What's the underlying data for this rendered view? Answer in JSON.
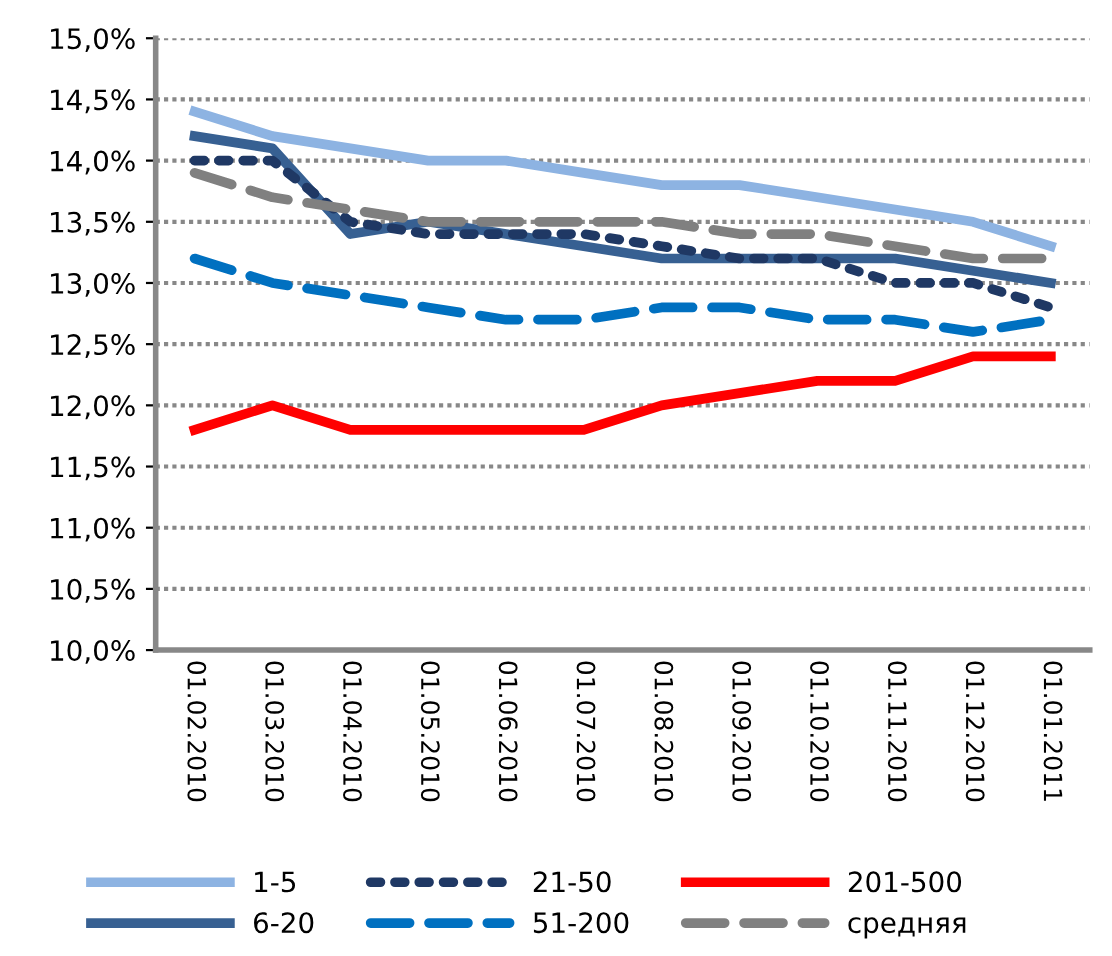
{
  "chart_data": {
    "type": "line",
    "categories": [
      "01.02.2010",
      "01.03.2010",
      "01.04.2010",
      "01.05.2010",
      "01.06.2010",
      "01.07.2010",
      "01.08.2010",
      "01.09.2010",
      "01.10.2010",
      "01.11.2010",
      "01.12.2010",
      "01.01.2011"
    ],
    "series": [
      {
        "name": "1-5",
        "color": "#8db3e2",
        "line_style": "solid",
        "values": [
          14.4,
          14.2,
          14.1,
          14.0,
          14.0,
          13.9,
          13.8,
          13.8,
          13.7,
          13.6,
          13.5,
          13.3
        ]
      },
      {
        "name": "6-20",
        "color": "#376092",
        "line_style": "solid",
        "values": [
          14.2,
          14.1,
          13.4,
          13.5,
          13.4,
          13.3,
          13.2,
          13.2,
          13.2,
          13.2,
          13.1,
          13.0
        ]
      },
      {
        "name": "21-50",
        "color": "#1f3864",
        "line_style": "dotted",
        "values": [
          14.0,
          14.0,
          13.5,
          13.4,
          13.4,
          13.4,
          13.3,
          13.2,
          13.2,
          13.0,
          13.0,
          12.8
        ]
      },
      {
        "name": "51-200",
        "color": "#0070c0",
        "line_style": "dashed",
        "values": [
          13.2,
          13.0,
          12.9,
          12.8,
          12.7,
          12.7,
          12.8,
          12.8,
          12.7,
          12.7,
          12.6,
          12.7
        ]
      },
      {
        "name": "201-500",
        "color": "#ff0000",
        "line_style": "solid",
        "values": [
          11.8,
          12.0,
          11.8,
          11.8,
          11.8,
          11.8,
          12.0,
          12.1,
          12.2,
          12.2,
          12.4,
          12.4
        ]
      },
      {
        "name": "средняя",
        "color": "#808080",
        "line_style": "dashed",
        "values": [
          13.9,
          13.7,
          13.6,
          13.5,
          13.5,
          13.5,
          13.5,
          13.4,
          13.4,
          13.3,
          13.2,
          13.2
        ]
      }
    ],
    "ylim": [
      10.0,
      15.0
    ],
    "yticks": [
      {
        "value": 10.0,
        "label": "10,0%"
      },
      {
        "value": 10.5,
        "label": "10,5%"
      },
      {
        "value": 11.0,
        "label": "11,0%"
      },
      {
        "value": 11.5,
        "label": "11,5%"
      },
      {
        "value": 12.0,
        "label": "12,0%"
      },
      {
        "value": 12.5,
        "label": "12,5%"
      },
      {
        "value": 13.0,
        "label": "13,0%"
      },
      {
        "value": 13.5,
        "label": "13,5%"
      },
      {
        "value": 14.0,
        "label": "14,0%"
      },
      {
        "value": 14.5,
        "label": "14,5%"
      },
      {
        "value": 15.0,
        "label": "15,0%"
      }
    ],
    "grid": "y",
    "legend": "bottom",
    "marker": "none"
  }
}
